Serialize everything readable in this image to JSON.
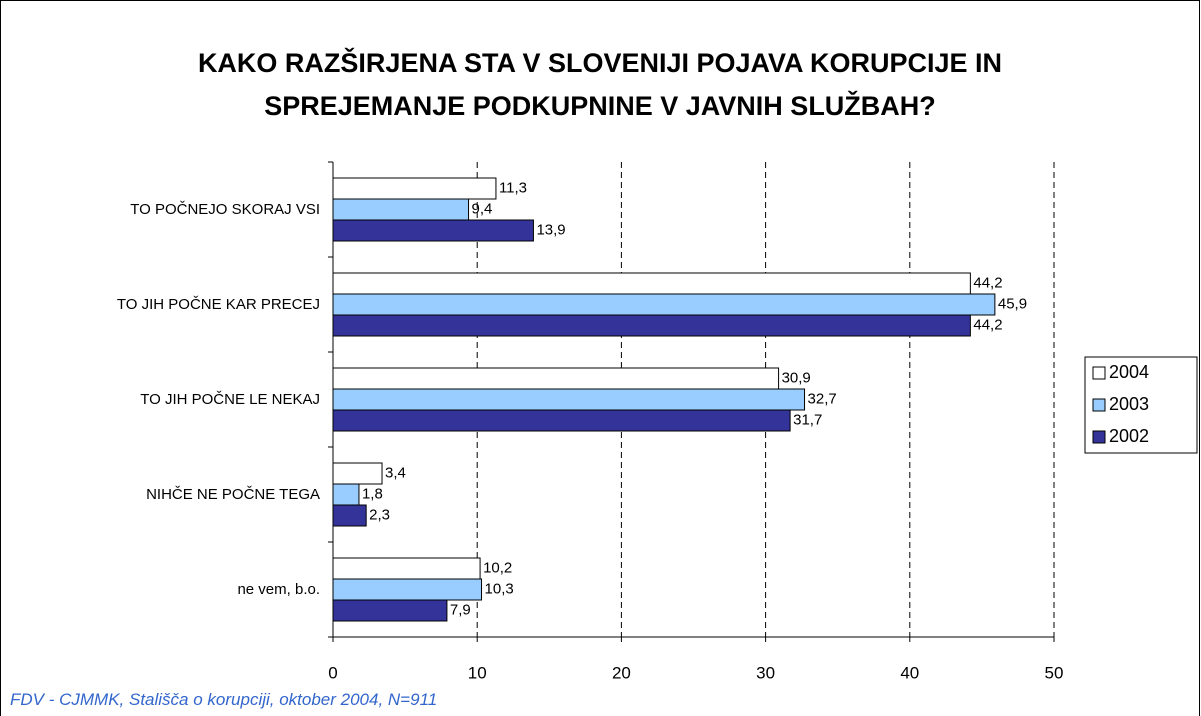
{
  "chart_data": {
    "type": "hbar",
    "title": "KAKO RAZŠIRJENA STA V SLOVENIJI POJAVA KORUPCIJE IN SPREJEMANJE PODKUPNINE V JAVNIH SLUŽBAH?",
    "categories": [
      "TO POČNEJO SKORAJ VSI",
      "TO JIH POČNE KAR PRECEJ",
      "TO JIH POČNE LE NEKAJ",
      "NIHČE NE POČNE TEGA",
      "ne vem, b.o."
    ],
    "series": [
      {
        "name": "2004",
        "color": "#ffffff",
        "values": [
          11.3,
          44.2,
          30.9,
          3.4,
          10.2
        ],
        "value_labels": [
          "11,3",
          "44,2",
          "30,9",
          "3,4",
          "10,2"
        ]
      },
      {
        "name": "2003",
        "color": "#99ccff",
        "values": [
          9.4,
          45.9,
          32.7,
          1.8,
          10.3
        ],
        "value_labels": [
          "9,4",
          "45,9",
          "32,7",
          "1,8",
          "10,3"
        ]
      },
      {
        "name": "2002",
        "color": "#333399",
        "values": [
          13.9,
          44.2,
          31.7,
          2.3,
          7.9
        ],
        "value_labels": [
          "13,9",
          "44,2",
          "31,7",
          "2,3",
          "7,9"
        ]
      }
    ],
    "xlim": [
      0,
      50
    ],
    "xticks": [
      0,
      10,
      20,
      30,
      40,
      50
    ],
    "grid": true,
    "legend": "right",
    "source": "FDV - CJMMK, Stališča o korupciji, oktober 2004, N=911"
  }
}
